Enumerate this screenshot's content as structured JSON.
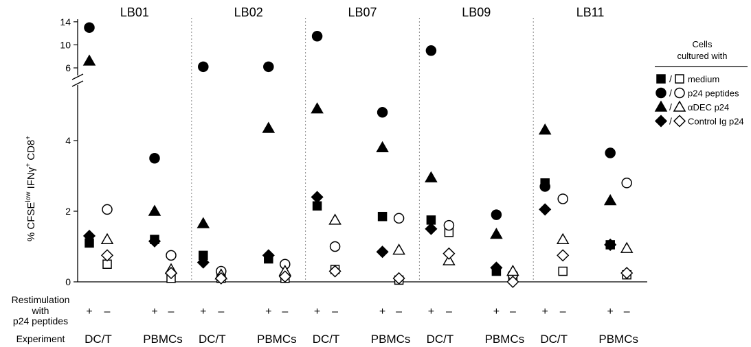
{
  "chart_data": {
    "type": "scatter",
    "ylabel": "% CFSE^low IFNγ^+ CD8^+",
    "y_axis_break": true,
    "y_lower_ticks": [
      "0",
      "2",
      "4"
    ],
    "y_upper_ticks": [
      "6",
      "10",
      "14"
    ],
    "donors": [
      "LB01",
      "LB02",
      "LB07",
      "LB09",
      "LB11"
    ],
    "conditions": [
      {
        "experiment": "DC/T",
        "restim": "+"
      },
      {
        "experiment": "DC/T",
        "restim": "–"
      },
      {
        "experiment": "PBMCs",
        "restim": "+"
      },
      {
        "experiment": "PBMCs",
        "restim": "–"
      }
    ],
    "row_labels": {
      "restim_line1": "Restimulation",
      "restim_line2": "with",
      "restim_line3": "p24 peptides",
      "experiment": "Experiment"
    },
    "legend": {
      "title_line1": "Cells",
      "title_line2": "cultured with",
      "entries": [
        {
          "shape": "square",
          "label": "medium"
        },
        {
          "shape": "circle",
          "label": "p24 peptides"
        },
        {
          "shape": "triangle",
          "label": "αDEC p24"
        },
        {
          "shape": "diamond",
          "label": "Control Ig p24"
        }
      ]
    },
    "series": [
      {
        "shape": "square",
        "values": [
          [
            1.1,
            0.5,
            1.2,
            0.1
          ],
          [
            0.75,
            0.1,
            0.65,
            0.1
          ],
          [
            2.15,
            0.35,
            1.85,
            0.05
          ],
          [
            1.75,
            1.4,
            0.3,
            0.15
          ],
          [
            2.8,
            0.3,
            1.05,
            0.2
          ]
        ]
      },
      {
        "shape": "circle",
        "values": [
          [
            13,
            2.05,
            3.5,
            0.75
          ],
          [
            6.2,
            0.3,
            6.2,
            0.5
          ],
          [
            11.5,
            1.0,
            4.8,
            1.8
          ],
          [
            9,
            1.6,
            1.9,
            0.2
          ],
          [
            2.7,
            2.35,
            3.65,
            2.8
          ]
        ]
      },
      {
        "shape": "triangle",
        "values": [
          [
            7.2,
            1.2,
            2.0,
            0.35
          ],
          [
            1.65,
            0.2,
            4.35,
            0.3
          ],
          [
            4.9,
            1.75,
            3.8,
            0.9
          ],
          [
            2.95,
            0.6,
            1.35,
            0.3
          ],
          [
            4.3,
            1.2,
            2.3,
            0.95
          ]
        ]
      },
      {
        "shape": "diamond",
        "values": [
          [
            1.3,
            0.75,
            1.15,
            0.25
          ],
          [
            0.55,
            0.1,
            0.75,
            0.15
          ],
          [
            2.4,
            0.3,
            0.85,
            0.1
          ],
          [
            1.5,
            0.8,
            0.4,
            0.0
          ],
          [
            2.05,
            0.75,
            1.05,
            0.25
          ]
        ]
      }
    ]
  }
}
